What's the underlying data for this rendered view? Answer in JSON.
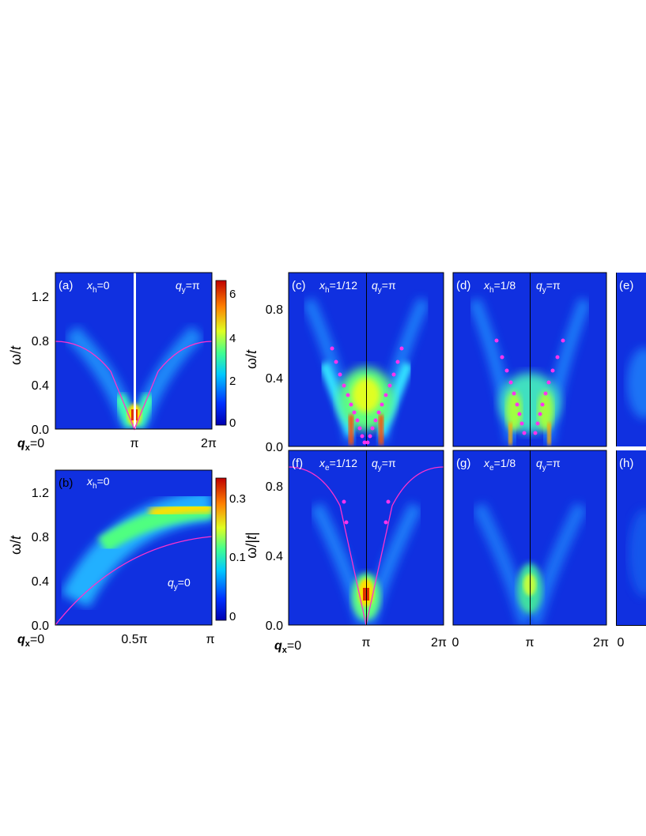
{
  "panels": {
    "a": {
      "label": "(a)",
      "doping": "x",
      "doping_sub": "h",
      "doping_val": "=0",
      "q_fixed": "q",
      "q_fixed_sub": "y",
      "q_fixed_val": "=π",
      "ylabel": "ω/",
      "ylabel_it": "t",
      "yticks": [
        "0.0",
        "0.4",
        "0.8",
        "1.2"
      ],
      "xticks": [
        "π",
        "2π"
      ],
      "xtick0": "q",
      "xtick0_sub": "x",
      "xtick0_val": "=0",
      "colorbar_ticks": [
        "0",
        "2",
        "4",
        "6"
      ]
    },
    "b": {
      "label": "(b)",
      "doping": "x",
      "doping_sub": "h",
      "doping_val": "=0",
      "q_fixed": "q",
      "q_fixed_sub": "y",
      "q_fixed_val": "=0",
      "ylabel": "ω/",
      "ylabel_it": "t",
      "yticks": [
        "0.0",
        "0.4",
        "0.8",
        "1.2"
      ],
      "xticks": [
        "0.5π",
        "π"
      ],
      "xtick0": "q",
      "xtick0_sub": "x",
      "xtick0_val": "=0",
      "colorbar_ticks": [
        "0",
        "0.1",
        "0.3"
      ]
    },
    "c": {
      "label": "(c)",
      "doping": "x",
      "doping_sub": "h",
      "doping_val": "=1/12",
      "q_fixed": "q",
      "q_fixed_sub": "y",
      "q_fixed_val": "=π",
      "ylabel": "ω/",
      "ylabel_it": "t",
      "yticks": [
        "0.0",
        "0.4",
        "0.8"
      ]
    },
    "d": {
      "label": "(d)",
      "doping": "x",
      "doping_sub": "h",
      "doping_val": "=1/8",
      "q_fixed": "q",
      "q_fixed_sub": "y",
      "q_fixed_val": "=π"
    },
    "e": {
      "label": "(e)"
    },
    "f": {
      "label": "(f)",
      "doping": "x",
      "doping_sub": "e",
      "doping_val": "=1/12",
      "q_fixed": "q",
      "q_fixed_sub": "y",
      "q_fixed_val": "=π",
      "ylabel": "ω/|",
      "ylabel_it": "t",
      "ylabel_end": "|",
      "yticks": [
        "0.0",
        "0.4",
        "0.8"
      ],
      "xticks": [
        "π",
        "2π"
      ],
      "xtick0": "q",
      "xtick0_sub": "x",
      "xtick0_val": "=0"
    },
    "g": {
      "label": "(g)",
      "doping": "x",
      "doping_sub": "e",
      "doping_val": "=1/8",
      "q_fixed": "q",
      "q_fixed_sub": "y",
      "q_fixed_val": "=π",
      "xticks": [
        "0",
        "π",
        "2π"
      ]
    },
    "h": {
      "label": "(h)",
      "xticks": [
        "0"
      ]
    }
  },
  "colors": {
    "background": "#1030e0",
    "magenta_curve": "#ff33cc",
    "dots": "#ff33ee"
  }
}
